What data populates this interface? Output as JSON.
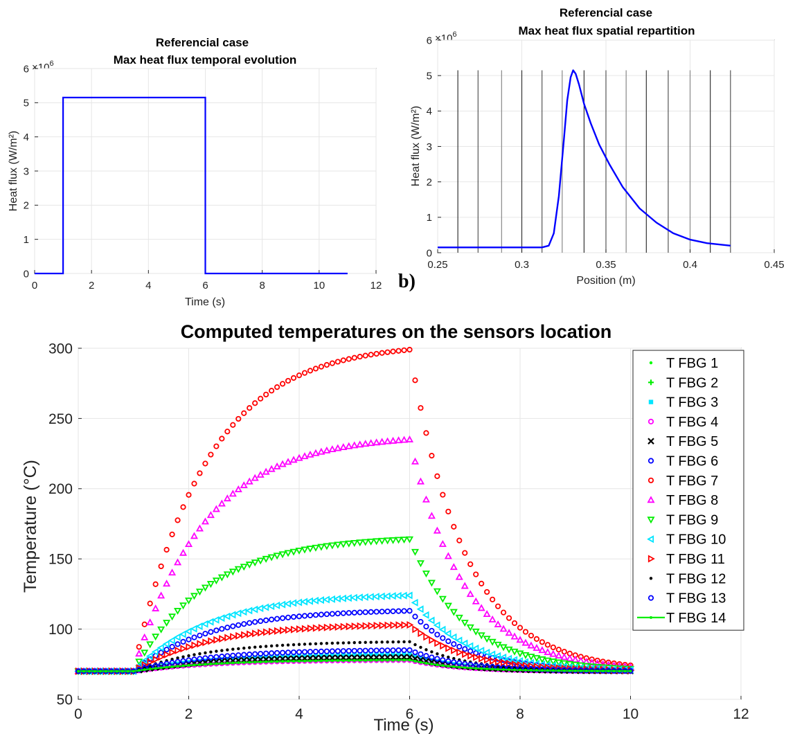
{
  "chart_data": [
    {
      "id": "a",
      "type": "line",
      "title": [
        "Referencial case",
        "Max heat flux temporal evolution"
      ],
      "xlabel": "Time (s)",
      "ylabel": "Heat flux (W/m²)",
      "exponent_label": "×10",
      "exponent_power": "6",
      "xlim": [
        0,
        12
      ],
      "ylim": [
        0,
        6
      ],
      "xticks": [
        0,
        2,
        4,
        6,
        8,
        10,
        12
      ],
      "yticks": [
        0,
        1,
        2,
        3,
        4,
        5,
        6
      ],
      "grid": true,
      "line_color": "#0000ff",
      "series": [
        {
          "x": [
            0,
            1,
            1,
            6,
            6,
            11
          ],
          "y": [
            0,
            0,
            5.15,
            5.15,
            0,
            0
          ]
        }
      ]
    },
    {
      "id": "b",
      "type": "line",
      "panel_label": "b)",
      "title": [
        "Referencial case",
        "Max heat flux spatial repartition"
      ],
      "xlabel": "Position (m)",
      "ylabel": "Heat flux (W/m²)",
      "exponent_label": "×10",
      "exponent_power": "6",
      "xlim": [
        0.25,
        0.45
      ],
      "ylim": [
        0,
        6
      ],
      "xticks": [
        0.25,
        0.3,
        0.35,
        0.4,
        0.45
      ],
      "yticks": [
        0,
        1,
        2,
        3,
        4,
        5,
        6
      ],
      "grid": true,
      "line_color": "#0000ff",
      "sensor_positions": [
        0.262,
        0.274,
        0.288,
        0.3,
        0.312,
        0.324,
        0.337,
        0.35,
        0.362,
        0.374,
        0.387,
        0.4,
        0.412,
        0.424
      ],
      "sensor_line_top": 5.15,
      "series": [
        {
          "x": [
            0.25,
            0.305,
            0.312,
            0.316,
            0.319,
            0.322,
            0.325,
            0.327,
            0.329,
            0.3305,
            0.332,
            0.334,
            0.337,
            0.341,
            0.346,
            0.352,
            0.36,
            0.37,
            0.38,
            0.39,
            0.4,
            0.41,
            0.424
          ],
          "y": [
            0.15,
            0.15,
            0.15,
            0.2,
            0.55,
            1.6,
            3.2,
            4.3,
            4.95,
            5.15,
            5.05,
            4.75,
            4.2,
            3.65,
            3.05,
            2.5,
            1.85,
            1.25,
            0.85,
            0.55,
            0.37,
            0.27,
            0.2
          ]
        }
      ]
    },
    {
      "id": "c",
      "type": "scatter",
      "title": "Computed temperatures on the sensors location",
      "xlabel": "Time (s)",
      "ylabel": "Temperature (°C)",
      "xlim": [
        0,
        12
      ],
      "ylim": [
        50,
        300
      ],
      "xticks": [
        0,
        2,
        4,
        6,
        8,
        10,
        12
      ],
      "yticks": [
        50,
        100,
        150,
        200,
        250,
        300
      ],
      "grid": true,
      "legend_position": "right",
      "baseline": 70,
      "x_start": 0,
      "x_end": 10,
      "x_step": 0.1,
      "heat_on": 1,
      "heat_off": 6,
      "series": [
        {
          "name": "T FBG 1",
          "color": "#00ff00",
          "marker": "dot",
          "peak": 77,
          "tau": 1.4,
          "decay": 0.9
        },
        {
          "name": "T FBG 2",
          "color": "#00ee00",
          "marker": "plus",
          "peak": 79,
          "tau": 1.4,
          "decay": 0.9
        },
        {
          "name": "T FBG 3",
          "color": "#00e5ff",
          "marker": "square",
          "peak": 82,
          "tau": 1.4,
          "decay": 0.9
        },
        {
          "name": "T FBG 4",
          "color": "#ff00ff",
          "marker": "circle",
          "peak": 78,
          "tau": 1.4,
          "decay": 0.9
        },
        {
          "name": "T FBG 5",
          "color": "#000000",
          "marker": "x",
          "peak": 80,
          "tau": 1.4,
          "decay": 0.9
        },
        {
          "name": "T FBG 6",
          "color": "#0000ff",
          "marker": "circle",
          "peak": 113,
          "tau": 1.4,
          "decay": 1.0
        },
        {
          "name": "T FBG 7",
          "color": "#ff0000",
          "marker": "circle",
          "peak": 299,
          "tau": 1.3,
          "decay": 1.0
        },
        {
          "name": "T FBG 8",
          "color": "#ff00ff",
          "marker": "triup",
          "peak": 235,
          "tau": 1.3,
          "decay": 1.0
        },
        {
          "name": "T FBG 9",
          "color": "#00ee00",
          "marker": "tridown",
          "peak": 164,
          "tau": 1.35,
          "decay": 1.0
        },
        {
          "name": "T FBG 10",
          "color": "#00e5ff",
          "marker": "trileft",
          "peak": 124,
          "tau": 1.4,
          "decay": 1.0
        },
        {
          "name": "T FBG 11",
          "color": "#ff0000",
          "marker": "triright",
          "peak": 103,
          "tau": 1.4,
          "decay": 1.0
        },
        {
          "name": "T FBG 12",
          "color": "#000000",
          "marker": "dot",
          "peak": 91,
          "tau": 1.4,
          "decay": 0.95
        },
        {
          "name": "T FBG 13",
          "color": "#0000ff",
          "marker": "circle",
          "peak": 85,
          "tau": 1.4,
          "decay": 0.95
        },
        {
          "name": "T FBG 14",
          "color": "#00ee00",
          "marker": "line-star",
          "peak": 78,
          "tau": 1.4,
          "decay": 0.9
        }
      ]
    }
  ]
}
